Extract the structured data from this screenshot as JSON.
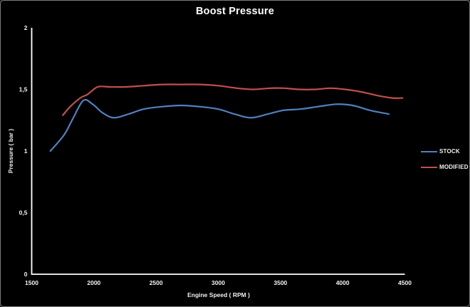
{
  "chart_data": {
    "type": "line",
    "title": "Boost Pressure",
    "xlabel": "Engine Speed ( RPM )",
    "ylabel": "Pressure ( bar )",
    "xlim": [
      1500,
      4500
    ],
    "ylim": [
      0,
      2
    ],
    "grid": false,
    "legend_position": "right",
    "background_color": "#000000",
    "axis_color": "#ffffff",
    "text_color": "#f2f2f2",
    "x_ticks": [
      {
        "v": 1500,
        "label": "1500"
      },
      {
        "v": 2000,
        "label": "2000"
      },
      {
        "v": 2500,
        "label": "2500"
      },
      {
        "v": 3000,
        "label": "3000"
      },
      {
        "v": 3500,
        "label": "3500"
      },
      {
        "v": 4000,
        "label": "4000"
      },
      {
        "v": 4500,
        "label": "4500"
      }
    ],
    "y_ticks": [
      {
        "v": 0,
        "label": "0"
      },
      {
        "v": 0.5,
        "label": "0,5"
      },
      {
        "v": 1,
        "label": "1"
      },
      {
        "v": 1.5,
        "label": "1,5"
      },
      {
        "v": 2,
        "label": "2"
      }
    ],
    "series": [
      {
        "name": "STOCK",
        "color": "#4F81BD",
        "points": [
          [
            1650,
            1.0
          ],
          [
            1760,
            1.13
          ],
          [
            1830,
            1.26
          ],
          [
            1915,
            1.41
          ],
          [
            1990,
            1.38
          ],
          [
            2070,
            1.31
          ],
          [
            2160,
            1.27
          ],
          [
            2280,
            1.3
          ],
          [
            2400,
            1.34
          ],
          [
            2550,
            1.36
          ],
          [
            2700,
            1.37
          ],
          [
            2850,
            1.36
          ],
          [
            3000,
            1.34
          ],
          [
            3130,
            1.3
          ],
          [
            3260,
            1.27
          ],
          [
            3400,
            1.3
          ],
          [
            3520,
            1.33
          ],
          [
            3660,
            1.34
          ],
          [
            3800,
            1.36
          ],
          [
            3950,
            1.38
          ],
          [
            4080,
            1.37
          ],
          [
            4220,
            1.33
          ],
          [
            4370,
            1.3
          ]
        ]
      },
      {
        "name": "MODIFIED",
        "color": "#C0504D",
        "points": [
          [
            1750,
            1.29
          ],
          [
            1810,
            1.36
          ],
          [
            1890,
            1.43
          ],
          [
            1950,
            1.46
          ],
          [
            2030,
            1.52
          ],
          [
            2130,
            1.52
          ],
          [
            2250,
            1.52
          ],
          [
            2400,
            1.53
          ],
          [
            2550,
            1.54
          ],
          [
            2700,
            1.54
          ],
          [
            2860,
            1.54
          ],
          [
            3000,
            1.53
          ],
          [
            3150,
            1.51
          ],
          [
            3280,
            1.5
          ],
          [
            3420,
            1.51
          ],
          [
            3530,
            1.51
          ],
          [
            3650,
            1.5
          ],
          [
            3780,
            1.5
          ],
          [
            3900,
            1.51
          ],
          [
            4020,
            1.5
          ],
          [
            4150,
            1.48
          ],
          [
            4280,
            1.45
          ],
          [
            4400,
            1.43
          ],
          [
            4480,
            1.43
          ]
        ]
      }
    ]
  }
}
